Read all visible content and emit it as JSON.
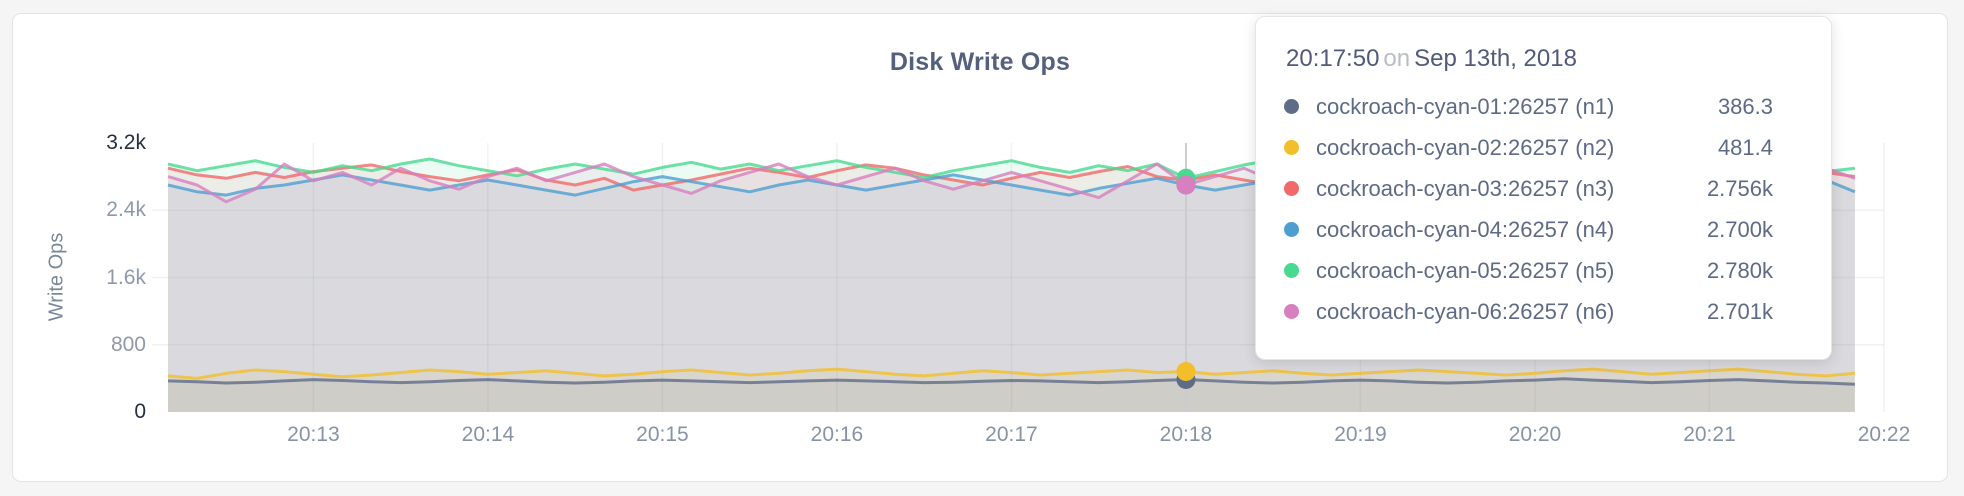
{
  "page": {
    "background": "#f5f5f6"
  },
  "card": {
    "background": "#ffffff",
    "border_color": "#e3e4e7"
  },
  "chart": {
    "title": "Disk Write Ops",
    "y_axis_label": "Write Ops",
    "y_ticks": [
      {
        "label": "0",
        "value": 0,
        "emphasis": true,
        "grid": false
      },
      {
        "label": "800",
        "value": 800,
        "emphasis": false,
        "grid": true
      },
      {
        "label": "1.6k",
        "value": 1600,
        "emphasis": false,
        "grid": true
      },
      {
        "label": "2.4k",
        "value": 2400,
        "emphasis": false,
        "grid": true
      },
      {
        "label": "3.2k",
        "value": 3200,
        "emphasis": true,
        "grid": false
      }
    ],
    "x_ticks": [
      {
        "label": "20:13",
        "index": 5
      },
      {
        "label": "20:14",
        "index": 11
      },
      {
        "label": "20:15",
        "index": 17
      },
      {
        "label": "20:16",
        "index": 23
      },
      {
        "label": "20:17",
        "index": 29
      },
      {
        "label": "20:18",
        "index": 35
      },
      {
        "label": "20:19",
        "index": 41
      },
      {
        "label": "20:20",
        "index": 47
      },
      {
        "label": "20:21",
        "index": 53
      },
      {
        "label": "20:22",
        "index": 59
      }
    ],
    "grid_color": "rgba(0,0,0,0.055)",
    "hover_line_color": "#cbccd0"
  },
  "chart_data": {
    "type": "line",
    "title": "Disk Write Ops",
    "xlabel": "",
    "ylabel": "Write Ops",
    "ylim": [
      0,
      3200
    ],
    "x_tick_labels": [
      "20:13",
      "20:14",
      "20:15",
      "20:16",
      "20:17",
      "20:18",
      "20:19",
      "20:20",
      "20:21",
      "20:22"
    ],
    "x_step_seconds": 10,
    "legend_position": "tooltip",
    "grid": true,
    "hover": {
      "index": 35,
      "time": "20:17:50",
      "date": "Sep 13th, 2018"
    },
    "series": [
      {
        "name": "cockroach-cyan-01:26257 (n1)",
        "color": "#5F6C87",
        "values": [
          370,
          360,
          345,
          355,
          370,
          385,
          375,
          360,
          350,
          360,
          375,
          385,
          370,
          355,
          345,
          355,
          370,
          380,
          370,
          360,
          350,
          360,
          370,
          380,
          370,
          360,
          350,
          355,
          365,
          375,
          370,
          360,
          350,
          360,
          375,
          386.3,
          370,
          355,
          345,
          355,
          370,
          380,
          370,
          355,
          345,
          355,
          370,
          380,
          395,
          380,
          365,
          350,
          360,
          375,
          385,
          370,
          355,
          345,
          330
        ]
      },
      {
        "name": "cockroach-cyan-02:26257 (n2)",
        "color": "#F2BE2C",
        "values": [
          430,
          400,
          460,
          500,
          480,
          450,
          420,
          440,
          470,
          500,
          480,
          450,
          470,
          490,
          460,
          430,
          450,
          480,
          500,
          470,
          440,
          460,
          490,
          510,
          480,
          450,
          430,
          460,
          490,
          470,
          440,
          460,
          480,
          500,
          470,
          481.4,
          450,
          470,
          490,
          460,
          440,
          460,
          480,
          500,
          480,
          460,
          440,
          460,
          490,
          510,
          480,
          450,
          470,
          490,
          510,
          480,
          450,
          430,
          460
        ]
      },
      {
        "name": "cockroach-cyan-03:26257 (n3)",
        "color": "#F16969",
        "values": [
          2900,
          2820,
          2780,
          2850,
          2790,
          2860,
          2900,
          2940,
          2860,
          2800,
          2750,
          2820,
          2880,
          2760,
          2700,
          2780,
          2640,
          2700,
          2760,
          2830,
          2900,
          2850,
          2790,
          2870,
          2940,
          2900,
          2820,
          2760,
          2700,
          2780,
          2850,
          2790,
          2860,
          2920,
          2800,
          2756,
          2820,
          2760,
          2700,
          2640,
          2700,
          2780,
          2850,
          2790,
          2730,
          2800,
          2870,
          2810,
          2750,
          2820,
          2760,
          2700,
          2770,
          2840,
          2780,
          2720,
          2790,
          2850,
          2800
        ]
      },
      {
        "name": "cockroach-cyan-04:26257 (n4)",
        "color": "#4E9FD1",
        "values": [
          2700,
          2620,
          2580,
          2660,
          2700,
          2760,
          2820,
          2760,
          2700,
          2640,
          2700,
          2760,
          2700,
          2640,
          2580,
          2660,
          2740,
          2800,
          2740,
          2680,
          2620,
          2700,
          2760,
          2700,
          2640,
          2700,
          2760,
          2820,
          2760,
          2700,
          2640,
          2580,
          2660,
          2720,
          2780,
          2700,
          2640,
          2700,
          2760,
          2820,
          2760,
          2700,
          2640,
          2700,
          2760,
          2700,
          2640,
          2580,
          2660,
          2720,
          2660,
          2600,
          2680,
          2740,
          2700,
          2640,
          2700,
          2760,
          2620
        ]
      },
      {
        "name": "cockroach-cyan-05:26257 (n5)",
        "color": "#49D990",
        "values": [
          2950,
          2870,
          2930,
          2990,
          2910,
          2850,
          2930,
          2870,
          2950,
          3010,
          2930,
          2870,
          2810,
          2890,
          2950,
          2890,
          2830,
          2910,
          2970,
          2890,
          2950,
          2870,
          2930,
          2990,
          2910,
          2850,
          2790,
          2870,
          2930,
          2990,
          2910,
          2850,
          2930,
          2870,
          2950,
          2780,
          2860,
          2940,
          3000,
          2920,
          2860,
          2940,
          2880,
          2820,
          2900,
          2960,
          2900,
          2840,
          2920,
          2860,
          2940,
          2880,
          2940,
          3000,
          2920,
          2860,
          2920,
          2860,
          2900
        ]
      },
      {
        "name": "cockroach-cyan-06:26257 (n6)",
        "color": "#D77FBF",
        "values": [
          2800,
          2700,
          2500,
          2650,
          2950,
          2750,
          2850,
          2700,
          2900,
          2750,
          2650,
          2800,
          2900,
          2750,
          2850,
          2950,
          2800,
          2700,
          2600,
          2750,
          2850,
          2950,
          2800,
          2700,
          2800,
          2900,
          2750,
          2650,
          2750,
          2850,
          2750,
          2650,
          2550,
          2750,
          2950,
          2701,
          2800,
          2900,
          2750,
          2650,
          2550,
          2700,
          2850,
          2950,
          2800,
          2700,
          2600,
          2750,
          2850,
          2950,
          3000,
          2850,
          2700,
          2600,
          2750,
          2850,
          2750,
          2900,
          2780
        ]
      }
    ]
  },
  "tooltip": {
    "time": "20:17:50",
    "conjunction": "on",
    "date": "Sep 13th, 2018",
    "rows": [
      {
        "name": "cockroach-cyan-01:26257 (n1)",
        "value": "386.3",
        "color": "#5F6C87"
      },
      {
        "name": "cockroach-cyan-02:26257 (n2)",
        "value": "481.4",
        "color": "#F2BE2C"
      },
      {
        "name": "cockroach-cyan-03:26257 (n3)",
        "value": "2.756k",
        "color": "#F16969"
      },
      {
        "name": "cockroach-cyan-04:26257 (n4)",
        "value": "2.700k",
        "color": "#4E9FD1"
      },
      {
        "name": "cockroach-cyan-05:26257 (n5)",
        "value": "2.780k",
        "color": "#49D990"
      },
      {
        "name": "cockroach-cyan-06:26257 (n6)",
        "value": "2.701k",
        "color": "#D77FBF"
      }
    ]
  }
}
